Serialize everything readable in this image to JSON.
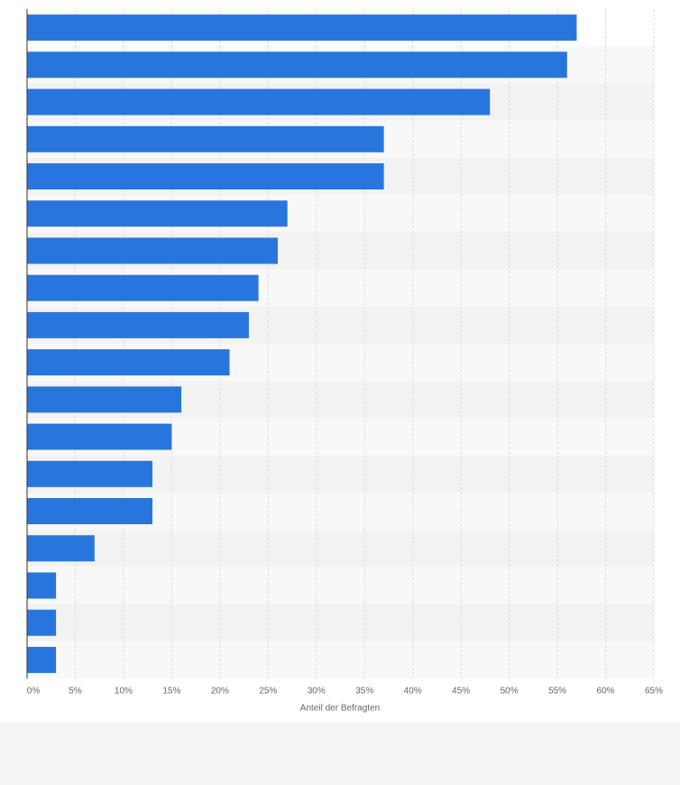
{
  "chart_data": {
    "type": "bar",
    "orientation": "horizontal",
    "x_label": "Anteil der Befragten",
    "categories": [
      null,
      null,
      null,
      null,
      null,
      null,
      null,
      null,
      null,
      null,
      null,
      null,
      null,
      null,
      null,
      null,
      null,
      null
    ],
    "values": [
      57,
      56,
      48,
      37,
      37,
      27,
      26,
      24,
      23,
      21,
      16,
      15,
      13,
      13,
      7,
      3,
      3,
      3
    ],
    "color": "#2876dd",
    "xlim": [
      0,
      65
    ],
    "xticks": [
      {
        "value": 0,
        "label": "0%"
      },
      {
        "value": 5,
        "label": "5%"
      },
      {
        "value": 10,
        "label": "10%"
      },
      {
        "value": 15,
        "label": "15%"
      },
      {
        "value": 20,
        "label": "20%"
      },
      {
        "value": 25,
        "label": "25%"
      },
      {
        "value": 30,
        "label": "30%"
      },
      {
        "value": 35,
        "label": "35%"
      },
      {
        "value": 40,
        "label": "40%"
      },
      {
        "value": 45,
        "label": "45%"
      },
      {
        "value": 50,
        "label": "50%"
      },
      {
        "value": 55,
        "label": "55%"
      },
      {
        "value": 60,
        "label": "60%"
      },
      {
        "value": 65,
        "label": "65%"
      }
    ],
    "grid": true
  }
}
